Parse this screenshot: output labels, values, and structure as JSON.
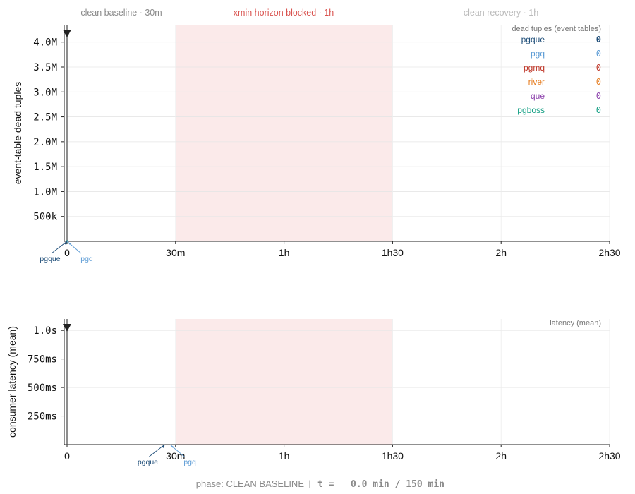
{
  "phases": [
    {
      "label": "clean baseline · 30m",
      "color": "#8a8a8a"
    },
    {
      "label": "xmin horizon blocked · 1h",
      "color": "#d9534f"
    },
    {
      "label": "clean recovery · 1h",
      "color": "#bbbbbb"
    }
  ],
  "status": {
    "phase": "phase: CLEAN BASELINE",
    "separator": "|",
    "time": "t =   0.0 min / 150 min"
  },
  "chart_data": [
    {
      "type": "line",
      "ylabel": "event-table dead tuples",
      "xlim": [
        0,
        150
      ],
      "ylim": [
        0,
        4350000
      ],
      "x_ticks": [
        0,
        30,
        60,
        90,
        120,
        150
      ],
      "x_tick_labels": [
        "0",
        "30m",
        "1h",
        "1h30",
        "2h",
        "2h30"
      ],
      "y_ticks": [
        500000,
        1000000,
        1500000,
        2000000,
        2500000,
        3000000,
        3500000,
        4000000
      ],
      "y_tick_labels": [
        "500k",
        "1.0M",
        "1.5M",
        "2.0M",
        "2.5M",
        "3.0M",
        "3.5M",
        "4.0M"
      ],
      "shaded_range": [
        30,
        90
      ],
      "grid": true,
      "legend_title": "dead tuples (event tables)",
      "legend_placement": "top-right",
      "series": [
        {
          "name": "pgque",
          "color": "#1f4e79",
          "value_label": "0",
          "x": [
            0
          ],
          "y": [
            0
          ]
        },
        {
          "name": "pgq",
          "color": "#5b9bd5",
          "value_label": "0",
          "x": [
            0
          ],
          "y": [
            0
          ]
        },
        {
          "name": "pgmq",
          "color": "#c0392b",
          "value_label": "0",
          "x": [
            0
          ],
          "y": [
            0
          ]
        },
        {
          "name": "river",
          "color": "#e67e22",
          "value_label": "0",
          "x": [
            0
          ],
          "y": [
            0
          ]
        },
        {
          "name": "que",
          "color": "#8e44ad",
          "value_label": "0",
          "x": [
            0
          ],
          "y": [
            0
          ]
        },
        {
          "name": "pgboss",
          "color": "#16a085",
          "value_label": "0",
          "x": [
            0
          ],
          "y": [
            0
          ]
        }
      ],
      "annotations": [
        {
          "text": "pgque",
          "color": "#1f4e79",
          "x": 0,
          "y": 0
        },
        {
          "text": "pgq",
          "color": "#5b9bd5",
          "x": 0,
          "y": 0
        }
      ]
    },
    {
      "type": "line",
      "ylabel": "consumer latency (mean)",
      "xlim": [
        0,
        150
      ],
      "ylim": [
        0,
        1.1
      ],
      "x_ticks": [
        0,
        30,
        60,
        90,
        120,
        150
      ],
      "x_tick_labels": [
        "0",
        "30m",
        "1h",
        "1h30",
        "2h",
        "2h30"
      ],
      "y_ticks": [
        0.25,
        0.5,
        0.75,
        1.0
      ],
      "y_tick_labels": [
        "250ms",
        "500ms",
        "750ms",
        "1.0s"
      ],
      "shaded_range": [
        30,
        90
      ],
      "grid": true,
      "legend_title": "latency (mean)",
      "legend_placement": "top-right",
      "series": [],
      "annotations": [
        {
          "text": "pgque",
          "color": "#1f4e79",
          "x": 27,
          "y": 0
        },
        {
          "text": "pgq",
          "color": "#5b9bd5",
          "x": 28.5,
          "y": 0
        }
      ]
    }
  ]
}
